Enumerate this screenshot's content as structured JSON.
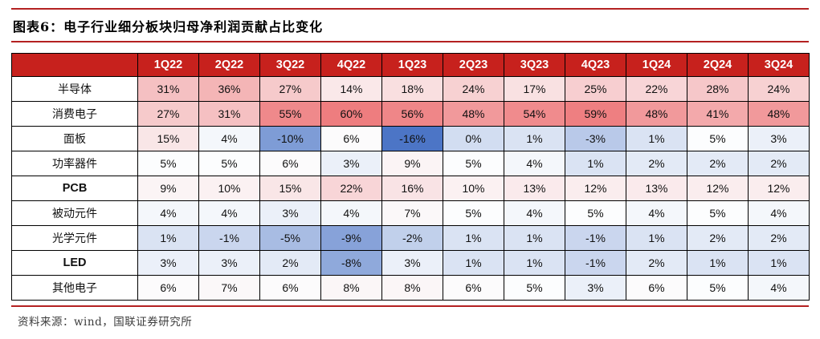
{
  "title": "图表6：电子行业细分板块归母净利润贡献占比变化",
  "source": "资料来源：wind，国联证券研究所",
  "colors": {
    "accent_rule": "#B42121",
    "header_bg": "#C7211D",
    "header_text": "#FFFFFF",
    "cell_border": "#000000",
    "scale_min_color": "#4C75C6",
    "scale_mid_color": "#FCFDFE",
    "scale_max_color": "#EE7D7F"
  },
  "chart_data": {
    "type": "heatmap",
    "title": "图表6：电子行业细分板块归母净利润贡献占比变化",
    "unit": "%",
    "categories": [
      "1Q22",
      "2Q22",
      "3Q22",
      "4Q22",
      "1Q23",
      "2Q23",
      "3Q23",
      "4Q23",
      "1Q24",
      "2Q24",
      "3Q24"
    ],
    "series": [
      {
        "name": "半导体",
        "values": [
          31,
          36,
          27,
          14,
          18,
          24,
          17,
          25,
          22,
          28,
          24
        ]
      },
      {
        "name": "消费电子",
        "values": [
          27,
          31,
          55,
          60,
          56,
          48,
          54,
          59,
          48,
          41,
          48
        ]
      },
      {
        "name": "面板",
        "values": [
          15,
          4,
          -10,
          6,
          -16,
          0,
          1,
          -3,
          1,
          5,
          3
        ]
      },
      {
        "name": "功率器件",
        "values": [
          5,
          5,
          6,
          3,
          9,
          5,
          4,
          1,
          2,
          2,
          2
        ]
      },
      {
        "name": "PCB",
        "values": [
          9,
          10,
          15,
          22,
          16,
          10,
          13,
          12,
          13,
          12,
          12
        ]
      },
      {
        "name": "被动元件",
        "values": [
          4,
          4,
          3,
          4,
          7,
          5,
          4,
          5,
          4,
          5,
          4
        ]
      },
      {
        "name": "光学元件",
        "values": [
          1,
          -1,
          -5,
          -9,
          -2,
          1,
          1,
          -1,
          1,
          2,
          2
        ]
      },
      {
        "name": "LED",
        "values": [
          3,
          3,
          2,
          -8,
          3,
          1,
          1,
          -1,
          2,
          1,
          1
        ]
      },
      {
        "name": "其他电子",
        "values": [
          6,
          7,
          6,
          8,
          8,
          6,
          5,
          3,
          6,
          5,
          4
        ]
      }
    ],
    "color_scale": {
      "min_value": -16,
      "mid_value": 5,
      "max_value": 60
    },
    "legend_position": "none",
    "grid": true
  }
}
